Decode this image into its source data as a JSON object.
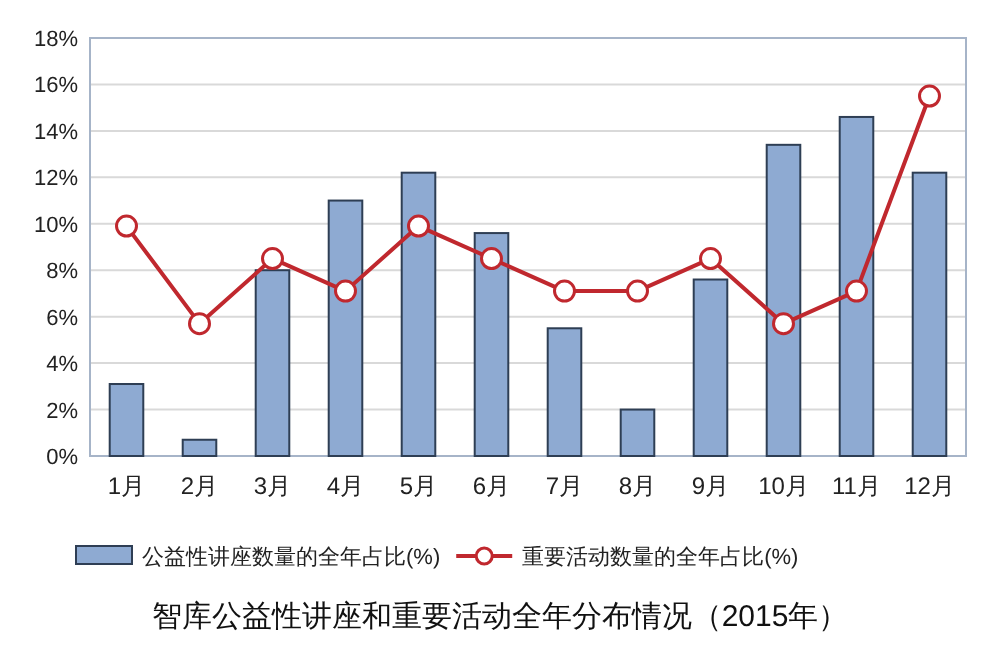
{
  "chart_data": {
    "type": "bar",
    "title": "智库公益性讲座和重要活动全年分布情况（2015年）",
    "categories": [
      "1月",
      "2月",
      "3月",
      "4月",
      "5月",
      "6月",
      "7月",
      "8月",
      "9月",
      "10月",
      "11月",
      "12月"
    ],
    "series": [
      {
        "name": "公益性讲座数量的全年占比(%)",
        "color": "#8eaad2",
        "values": [
          3.1,
          0.7,
          8.0,
          11.0,
          12.2,
          9.6,
          5.5,
          2.0,
          7.6,
          13.4,
          14.6,
          12.2
        ]
      },
      {
        "name": "重要活动数量的全年占比(%)",
        "type": "line",
        "color": "#c0282e",
        "marker": "circle",
        "values": [
          9.9,
          5.7,
          8.5,
          7.1,
          9.9,
          8.5,
          7.1,
          7.1,
          8.5,
          5.7,
          7.1,
          15.5
        ]
      }
    ],
    "ylim": [
      0,
      18
    ],
    "yticks": [
      {
        "value": 0,
        "label": "0%"
      },
      {
        "value": 2,
        "label": "2%"
      },
      {
        "value": 4,
        "label": "4%"
      },
      {
        "value": 6,
        "label": "6%"
      },
      {
        "value": 8,
        "label": "8%"
      },
      {
        "value": 10,
        "label": "10%"
      },
      {
        "value": 12,
        "label": "12%"
      },
      {
        "value": 14,
        "label": "14%"
      },
      {
        "value": 16,
        "label": "16%"
      },
      {
        "value": 18,
        "label": "18%"
      }
    ],
    "grid": "y",
    "legend": "bottom"
  }
}
